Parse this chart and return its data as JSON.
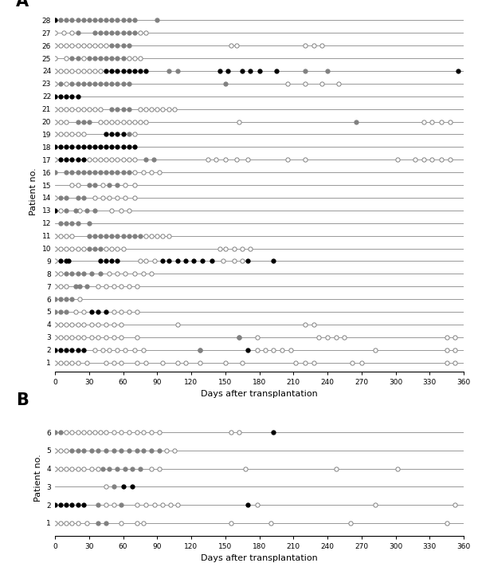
{
  "panel_A": {
    "patients": {
      "28": {
        "black": [
          0
        ],
        "gray": [
          5,
          10,
          15,
          20,
          25,
          30,
          35,
          40,
          45,
          50,
          55,
          60,
          65,
          70,
          90
        ],
        "open": []
      },
      "27": {
        "black": [],
        "gray": [
          20,
          35,
          40,
          45,
          50,
          55,
          60,
          65,
          70
        ],
        "open": [
          0,
          8,
          15,
          75,
          80
        ]
      },
      "26": {
        "black": [],
        "gray": [
          50,
          55,
          60,
          65
        ],
        "open": [
          0,
          5,
          10,
          15,
          20,
          25,
          30,
          35,
          40,
          45,
          155,
          160,
          220,
          228,
          235
        ]
      },
      "25": {
        "black": [],
        "gray": [
          15,
          20,
          30,
          35,
          40,
          45,
          50,
          55,
          60
        ],
        "open": [
          0,
          10,
          25,
          65,
          70,
          75
        ]
      },
      "24": {
        "black": [
          45,
          50,
          55,
          60,
          65,
          70,
          75,
          80,
          145,
          152,
          165,
          172,
          180,
          195,
          355
        ],
        "gray": [
          100,
          108,
          220,
          240
        ],
        "open": [
          0,
          5,
          10,
          15,
          20,
          25,
          30,
          35,
          40
        ]
      },
      "23": {
        "black": [],
        "gray": [
          5,
          15,
          20,
          25,
          30,
          35,
          40,
          45,
          50,
          55,
          60,
          65,
          150
        ],
        "open": [
          0,
          10,
          205,
          220,
          235,
          250
        ]
      },
      "22": {
        "black": [
          0,
          5,
          10,
          15,
          20
        ],
        "gray": [],
        "open": []
      },
      "21": {
        "black": [],
        "gray": [
          50,
          55,
          60,
          65
        ],
        "open": [
          0,
          5,
          10,
          15,
          20,
          25,
          30,
          35,
          40,
          75,
          80,
          85,
          90,
          95,
          100,
          105
        ]
      },
      "20": {
        "black": [],
        "gray": [
          20,
          25,
          30,
          265
        ],
        "open": [
          0,
          5,
          10,
          40,
          45,
          50,
          55,
          60,
          65,
          70,
          75,
          80,
          162,
          325,
          332,
          340,
          348
        ]
      },
      "19": {
        "black": [
          45,
          50,
          55,
          60
        ],
        "gray": [
          65
        ],
        "open": [
          0,
          5,
          10,
          15,
          20,
          25,
          70
        ]
      },
      "18": {
        "black": [
          0,
          5,
          10,
          15,
          20,
          25,
          30,
          35,
          40,
          45,
          50,
          55,
          60,
          65,
          70
        ],
        "gray": [],
        "open": []
      },
      "17": {
        "black": [
          5,
          10,
          15,
          20,
          25
        ],
        "gray": [
          80,
          87
        ],
        "open": [
          0,
          30,
          35,
          40,
          45,
          50,
          55,
          60,
          65,
          70,
          135,
          142,
          150,
          160,
          170,
          205,
          220,
          302,
          317,
          325,
          332,
          340,
          348
        ]
      },
      "16": {
        "black": [],
        "gray": [
          0,
          10,
          15,
          20,
          25,
          30,
          35,
          40,
          45,
          50,
          55,
          60,
          65
        ],
        "open": [
          70,
          78,
          85,
          92
        ]
      },
      "15": {
        "black": [],
        "gray": [
          30,
          35,
          48,
          55
        ],
        "open": [
          15,
          20,
          42,
          62,
          70
        ]
      },
      "14": {
        "black": [],
        "gray": [
          5,
          10,
          20,
          25
        ],
        "open": [
          0,
          35,
          42,
          48,
          55,
          62,
          70
        ]
      },
      "13": {
        "black": [
          0
        ],
        "gray": [
          10,
          18,
          28,
          35
        ],
        "open": [
          5,
          22,
          50,
          58,
          65
        ]
      },
      "12": {
        "black": [],
        "gray": [
          5,
          10,
          15,
          20,
          30
        ],
        "open": []
      },
      "11": {
        "black": [],
        "gray": [
          30,
          35,
          40,
          45,
          50,
          55,
          60,
          65,
          70,
          75
        ],
        "open": [
          0,
          5,
          10,
          15,
          80,
          85,
          90,
          95,
          100
        ]
      },
      "10": {
        "black": [],
        "gray": [
          30,
          35,
          40
        ],
        "open": [
          0,
          5,
          10,
          15,
          20,
          25,
          45,
          50,
          55,
          60,
          145,
          150,
          158,
          165,
          172
        ]
      },
      "9": {
        "black": [
          5,
          10,
          12,
          40,
          45,
          50,
          55,
          95,
          100,
          108,
          115,
          122,
          130,
          138,
          170,
          192
        ],
        "gray": [],
        "open": [
          0,
          75,
          80,
          88,
          148,
          158,
          165
        ]
      },
      "8": {
        "black": [],
        "gray": [
          10,
          15,
          20,
          25,
          32,
          40
        ],
        "open": [
          0,
          5,
          48,
          55,
          62,
          70,
          78,
          85
        ]
      },
      "7": {
        "black": [],
        "gray": [
          18,
          22,
          28
        ],
        "open": [
          0,
          5,
          10,
          38,
          45,
          52,
          58,
          65,
          72
        ]
      },
      "6": {
        "black": [],
        "gray": [
          0,
          5,
          10,
          15
        ],
        "open": [
          22
        ]
      },
      "5": {
        "black": [
          32,
          38,
          45
        ],
        "gray": [
          0,
          5,
          10
        ],
        "open": [
          18,
          25,
          52,
          58,
          65,
          72
        ]
      },
      "4": {
        "black": [],
        "gray": [],
        "open": [
          0,
          5,
          10,
          15,
          20,
          25,
          32,
          38,
          45,
          52,
          58,
          108,
          220,
          228
        ]
      },
      "3": {
        "black": [],
        "gray": [
          162
        ],
        "open": [
          0,
          5,
          10,
          15,
          20,
          25,
          32,
          38,
          45,
          52,
          58,
          72,
          162,
          178,
          232,
          240,
          248,
          255,
          345,
          352
        ]
      },
      "2": {
        "black": [
          0,
          5,
          10,
          15,
          20,
          25,
          170
        ],
        "gray": [
          128
        ],
        "open": [
          35,
          42,
          48,
          55,
          62,
          70,
          78,
          128,
          178,
          185,
          192,
          200,
          208,
          282,
          345,
          352
        ]
      },
      "1": {
        "black": [],
        "gray": [],
        "open": [
          0,
          5,
          10,
          15,
          20,
          28,
          45,
          52,
          58,
          72,
          80,
          95,
          108,
          115,
          128,
          150,
          165,
          212,
          220,
          228,
          262,
          270,
          345,
          352
        ]
      }
    }
  },
  "panel_B": {
    "patients": {
      "6": {
        "black": [
          192
        ],
        "gray": [
          0,
          5
        ],
        "open": [
          10,
          15,
          20,
          25,
          30,
          35,
          40,
          45,
          52,
          58,
          65,
          72,
          78,
          85,
          92,
          155,
          162
        ]
      },
      "5": {
        "black": [],
        "gray": [
          15,
          20,
          25,
          32,
          38,
          45,
          52,
          58,
          65,
          72,
          78,
          85,
          92
        ],
        "open": [
          0,
          5,
          10,
          98,
          105
        ]
      },
      "4": {
        "black": [],
        "gray": [
          42,
          48,
          55,
          62,
          68,
          75
        ],
        "open": [
          0,
          5,
          10,
          15,
          20,
          25,
          32,
          38,
          85,
          92,
          168,
          248,
          302
        ]
      },
      "3": {
        "black": [
          60,
          68
        ],
        "gray": [
          52
        ],
        "open": [
          45
        ]
      },
      "2": {
        "black": [
          0,
          5,
          10,
          15,
          20,
          25,
          170
        ],
        "gray": [
          38,
          58
        ],
        "open": [
          45,
          52,
          72,
          80,
          88,
          95,
          102,
          108,
          178,
          282,
          352
        ]
      },
      "1": {
        "black": [],
        "gray": [
          38,
          45
        ],
        "open": [
          0,
          5,
          10,
          15,
          20,
          28,
          58,
          72,
          78,
          155,
          190,
          260,
          345
        ]
      }
    }
  },
  "xlim": [
    0,
    360
  ],
  "xticks": [
    0,
    30,
    60,
    90,
    120,
    150,
    180,
    210,
    240,
    270,
    300,
    330,
    360
  ],
  "xlabel": "Days after transplantation",
  "ylabel": "Patient no.",
  "marker_size": 3.8,
  "open_color": "white",
  "gray_color": "#808080",
  "black_color": "black",
  "line_color": "#888888",
  "label_A": "A",
  "label_B": "B"
}
